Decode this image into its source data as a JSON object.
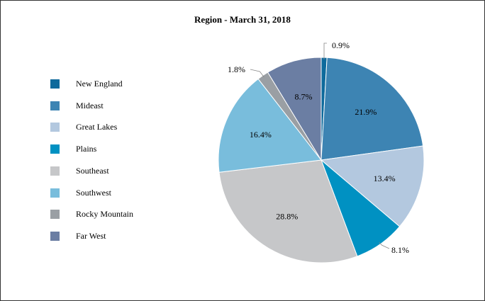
{
  "chart_data": {
    "type": "pie",
    "title": "Region - March 31, 2018",
    "legend_position": "left",
    "categories": [
      "New England",
      "Mideast",
      "Great Lakes",
      "Plains",
      "Southeast",
      "Southwest",
      "Rocky Mountain",
      "Far West"
    ],
    "values": [
      0.9,
      21.9,
      13.4,
      8.1,
      28.8,
      16.4,
      1.8,
      8.7
    ],
    "labels": [
      "0.9%",
      "21.9%",
      "13.4%",
      "8.1%",
      "28.8%",
      "16.4%",
      "1.8%",
      "8.7%"
    ],
    "colors": [
      "#0e6a9c",
      "#3d84b3",
      "#b3c8df",
      "#0091c2",
      "#c6c7c9",
      "#79bddc",
      "#9a9fa4",
      "#6b7ea3"
    ]
  }
}
